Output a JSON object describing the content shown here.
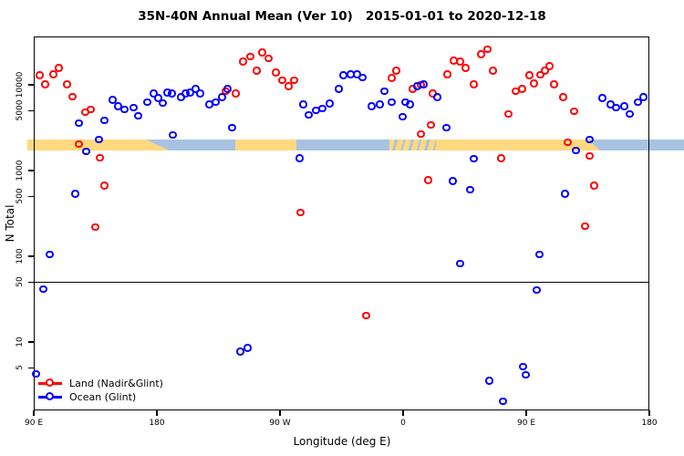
{
  "title": "35N-40N Annual Mean (Ver 10)   2015-01-01 to 2020-12-18",
  "chart_data": {
    "type": "scatter",
    "y_scale": "log10",
    "title": "35N-40N Annual Mean (Ver 10)   2015-01-01 to 2020-12-18",
    "xlabel": "Longitude (deg E)",
    "ylabel": "N Total",
    "x_axis_note": "longitude axis runs 90E eastward around globe to 180 (values stored as continuous 90..540 deg)",
    "x_ticks": [
      {
        "deg": 90,
        "label": "90 E"
      },
      {
        "deg": 180,
        "label": "180"
      },
      {
        "deg": 270,
        "label": "90 W"
      },
      {
        "deg": 360,
        "label": "0"
      },
      {
        "deg": 450,
        "label": "90 E"
      },
      {
        "deg": 540,
        "label": "180"
      }
    ],
    "y_ticks": [
      5,
      10,
      50,
      100,
      500,
      1000,
      5000,
      10000
    ],
    "ylim": [
      1.5,
      40000
    ],
    "reference_line_y": 50,
    "grid": false,
    "legend_position": "bottom-left",
    "coast_band": {
      "description": "land/ocean strip along 35N-40N plotted at N ~ 1700-2300",
      "ocean_color": "#a8c3e2",
      "land_color": "#ffd97f",
      "base_extent_deg": [
        85.3,
        565.3
      ],
      "land_segments": [
        {
          "from": 85.3,
          "to": 172,
          "style": "solid"
        },
        {
          "from": 172,
          "to": 189,
          "style": "taper"
        },
        {
          "from": 237.3,
          "to": 282,
          "style": "solid"
        },
        {
          "from": 350,
          "to": 384,
          "style": "mixed"
        },
        {
          "from": 384,
          "to": 495.3,
          "style": "solid"
        },
        {
          "from": 495.3,
          "to": 504,
          "style": "taper"
        }
      ]
    },
    "series": [
      {
        "name": "Land (Nadir&Glint)",
        "color": "#ff0000",
        "points": [
          [
            94.7,
            12700
          ],
          [
            98.7,
            10000
          ],
          [
            104.7,
            13000
          ],
          [
            108.7,
            15500
          ],
          [
            114.7,
            10000
          ],
          [
            118.7,
            7200
          ],
          [
            123.3,
            2000
          ],
          [
            128,
            4700
          ],
          [
            132,
            5100
          ],
          [
            135.3,
            215
          ],
          [
            138.7,
            1390
          ],
          [
            142,
            660
          ],
          [
            230.7,
            8300
          ],
          [
            238,
            7800
          ],
          [
            243.3,
            18400
          ],
          [
            248.7,
            21000
          ],
          [
            253.3,
            14400
          ],
          [
            257.3,
            23600
          ],
          [
            262,
            20100
          ],
          [
            267.3,
            13700
          ],
          [
            272,
            11200
          ],
          [
            276.7,
            9500
          ],
          [
            280.7,
            11200
          ],
          [
            285.3,
            320
          ],
          [
            333.3,
            20
          ],
          [
            352,
            11800
          ],
          [
            355.3,
            14400
          ],
          [
            367.3,
            8800
          ],
          [
            373.3,
            9900
          ],
          [
            373.3,
            2630
          ],
          [
            378.7,
            760
          ],
          [
            380.7,
            3360
          ],
          [
            382,
            7800
          ],
          [
            392.7,
            13100
          ],
          [
            397.3,
            18900
          ],
          [
            402,
            18500
          ],
          [
            406,
            15500
          ],
          [
            412,
            9950
          ],
          [
            417.3,
            22400
          ],
          [
            422,
            25500
          ],
          [
            426,
            14400
          ],
          [
            432,
            1380
          ],
          [
            437.3,
            4500
          ],
          [
            442.7,
            8300
          ],
          [
            447.3,
            8800
          ],
          [
            452.7,
            12700
          ],
          [
            456,
            10200
          ],
          [
            460.7,
            12900
          ],
          [
            464,
            14400
          ],
          [
            467.3,
            16300
          ],
          [
            470.7,
            10000
          ],
          [
            477.3,
            7100
          ],
          [
            480.7,
            2100
          ],
          [
            485.3,
            4860
          ],
          [
            493.3,
            222
          ],
          [
            496.7,
            1450
          ],
          [
            500,
            660
          ]
        ]
      },
      {
        "name": "Ocean (Glint)",
        "color": "#0000ff",
        "points": [
          [
            92,
            4.2
          ],
          [
            97.3,
            41
          ],
          [
            102,
            103
          ],
          [
            120.7,
            525
          ],
          [
            123.3,
            3520
          ],
          [
            128.7,
            1640
          ],
          [
            138,
            2265
          ],
          [
            142,
            3770
          ],
          [
            148,
            6550
          ],
          [
            152,
            5530
          ],
          [
            156.7,
            5100
          ],
          [
            163.3,
            5350
          ],
          [
            166.7,
            4270
          ],
          [
            173.3,
            6200
          ],
          [
            178,
            7800
          ],
          [
            181.3,
            6870
          ],
          [
            184.7,
            6050
          ],
          [
            188,
            7990
          ],
          [
            191.3,
            7800
          ],
          [
            192,
            2550
          ],
          [
            198,
            7100
          ],
          [
            201.3,
            7800
          ],
          [
            204.7,
            7990
          ],
          [
            208.7,
            8800
          ],
          [
            212,
            7800
          ],
          [
            218.7,
            5800
          ],
          [
            223.3,
            6200
          ],
          [
            228,
            7100
          ],
          [
            232,
            8800
          ],
          [
            235.3,
            3100
          ],
          [
            241.3,
            7.6
          ],
          [
            246.7,
            8.4
          ],
          [
            284.7,
            1380
          ],
          [
            287.3,
            5800
          ],
          [
            291.3,
            4370
          ],
          [
            296.7,
            4980
          ],
          [
            301.3,
            5230
          ],
          [
            306.7,
            5930
          ],
          [
            313.3,
            8800
          ],
          [
            316.7,
            12700
          ],
          [
            322,
            13000
          ],
          [
            326.7,
            13000
          ],
          [
            330.7,
            12000
          ],
          [
            337.3,
            5530
          ],
          [
            343.3,
            5800
          ],
          [
            346.7,
            8330
          ],
          [
            352,
            6200
          ],
          [
            360,
            4180
          ],
          [
            362,
            6200
          ],
          [
            365.3,
            5800
          ],
          [
            370.7,
            9500
          ],
          [
            375.3,
            9950
          ],
          [
            385.3,
            7100
          ],
          [
            392,
            3100
          ],
          [
            396.7,
            745
          ],
          [
            402,
            81
          ],
          [
            409.3,
            590
          ],
          [
            412,
            1360
          ],
          [
            423.3,
            3.5
          ],
          [
            433.3,
            2.0
          ],
          [
            448,
            5.1
          ],
          [
            450,
            4.1
          ],
          [
            458,
            40
          ],
          [
            460,
            103
          ],
          [
            478.7,
            525
          ],
          [
            486.7,
            1680
          ],
          [
            496.7,
            2265
          ],
          [
            506,
            6870
          ],
          [
            512,
            5800
          ],
          [
            516,
            5350
          ],
          [
            522,
            5530
          ],
          [
            526,
            4520
          ],
          [
            532,
            6200
          ],
          [
            536,
            7100
          ]
        ]
      }
    ],
    "legend": {
      "items": [
        {
          "label": "Land (Nadir&Glint)",
          "color": "#ff0000"
        },
        {
          "label": "Ocean (Glint)",
          "color": "#0000ff"
        }
      ]
    }
  }
}
